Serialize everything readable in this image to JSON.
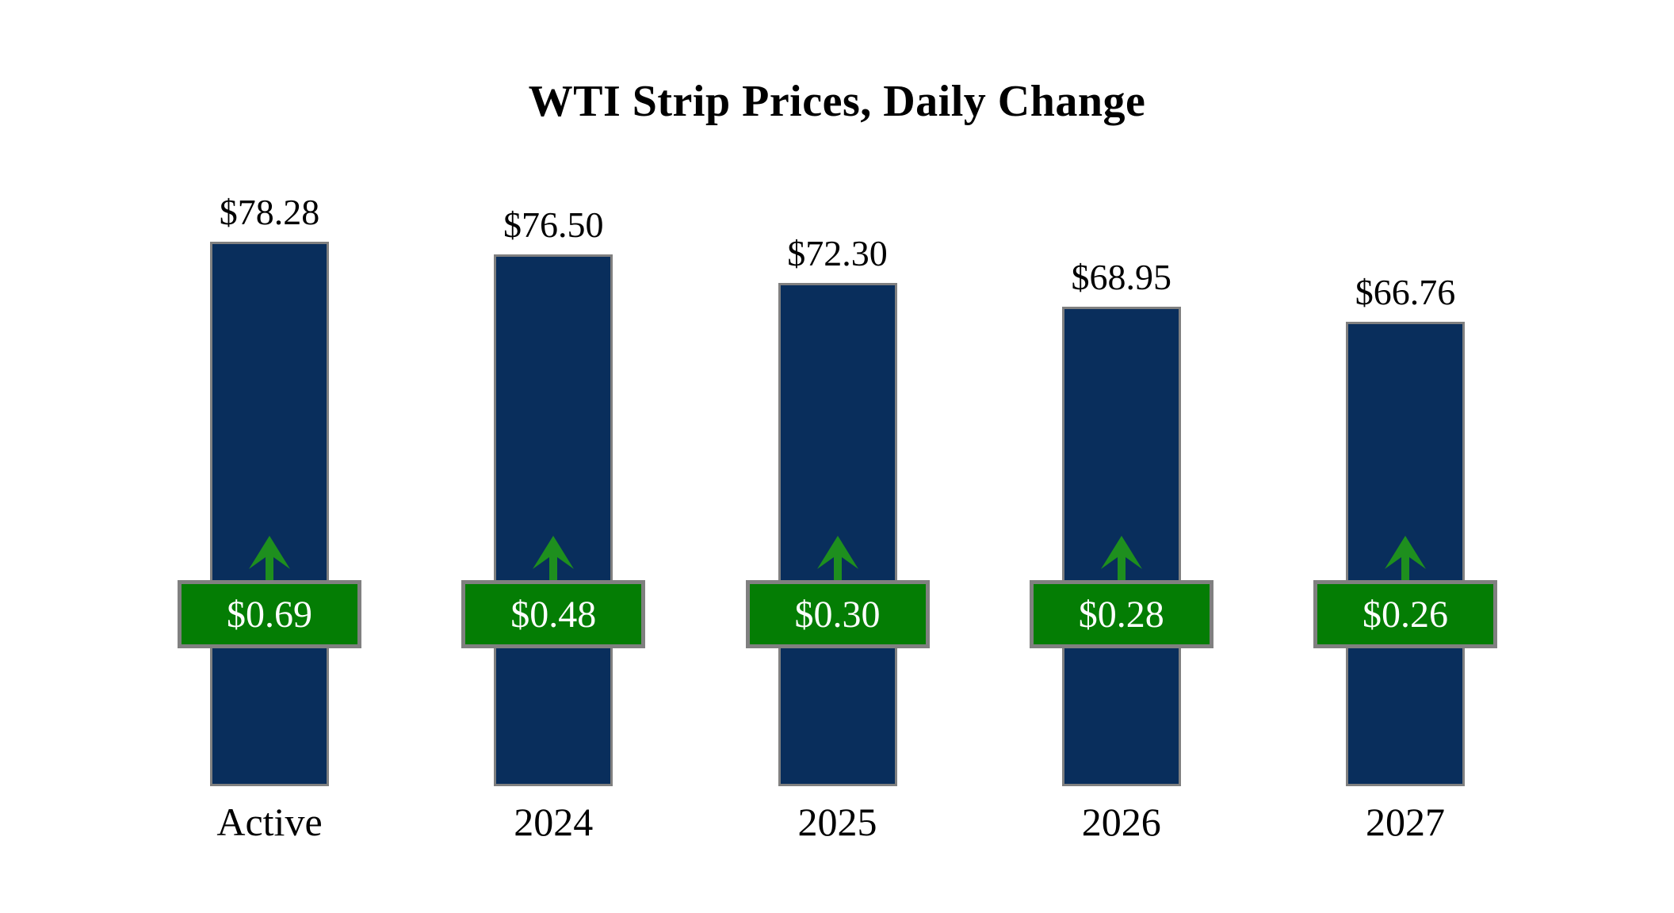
{
  "title": "WTI Strip Prices, Daily Change",
  "chart_data": {
    "type": "bar",
    "title": "WTI Strip Prices, Daily Change",
    "categories": [
      "Active",
      "2024",
      "2025",
      "2026",
      "2027"
    ],
    "values": [
      78.28,
      76.5,
      72.3,
      68.95,
      66.76
    ],
    "value_labels": [
      "$78.28",
      "$76.50",
      "$72.30",
      "$68.95",
      "$66.76"
    ],
    "series": [
      {
        "name": "Strip Price",
        "values": [
          78.28,
          76.5,
          72.3,
          68.95,
          66.76
        ]
      },
      {
        "name": "Daily Change",
        "values": [
          0.69,
          0.48,
          0.3,
          0.28,
          0.26
        ]
      }
    ],
    "change_labels": [
      "$0.69",
      "$0.48",
      "$0.30",
      "$0.28",
      "$0.26"
    ],
    "change_direction": "up",
    "ylim": [
      0,
      78.28
    ],
    "grid": "off",
    "legend": "none",
    "colors": {
      "bar_fill": "#092e5c",
      "bar_border": "#808080",
      "badge_fill": "#047d04",
      "badge_border": "#808080",
      "badge_text": "#ffffff",
      "arrow": "#1e8f1e",
      "label_text": "#000000",
      "background": "#ffffff"
    }
  }
}
